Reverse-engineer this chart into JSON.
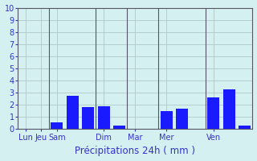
{
  "xlabel": "Précipitations 24h ( mm )",
  "ylim": [
    0,
    10
  ],
  "yticks": [
    0,
    1,
    2,
    3,
    4,
    5,
    6,
    7,
    8,
    9,
    10
  ],
  "background_color": "#d4f0f0",
  "grid_color": "#b0c8c8",
  "bar_color": "#1a1aff",
  "bars": [
    {
      "x": 0,
      "height": 0.0
    },
    {
      "x": 1,
      "height": 0.0
    },
    {
      "x": 2,
      "height": 0.55
    },
    {
      "x": 3,
      "height": 2.75
    },
    {
      "x": 4,
      "height": 1.8
    },
    {
      "x": 5,
      "height": 1.85
    },
    {
      "x": 6,
      "height": 0.3
    },
    {
      "x": 7,
      "height": 0.0
    },
    {
      "x": 8,
      "height": 0.0
    },
    {
      "x": 9,
      "height": 1.45
    },
    {
      "x": 10,
      "height": 1.65
    },
    {
      "x": 11,
      "height": 0.0
    },
    {
      "x": 12,
      "height": 2.6
    },
    {
      "x": 13,
      "height": 3.3
    },
    {
      "x": 14,
      "height": 0.3
    }
  ],
  "tick_positions": [
    0,
    1,
    2,
    5,
    7,
    9,
    12
  ],
  "tick_labels": [
    "Lun",
    "Jeu",
    "Sam",
    "Dim",
    "Mar",
    "Mer",
    "Ven"
  ],
  "separator_positions": [
    1.5,
    4.5,
    6.5,
    8.5,
    11.5
  ],
  "tick_color": "#3333cc",
  "xlabel_color": "#3333cc",
  "xlabel_fontsize": 8.5,
  "spine_color": "#555566",
  "bar_width": 0.75,
  "xlim": [
    -0.5,
    14.5
  ]
}
